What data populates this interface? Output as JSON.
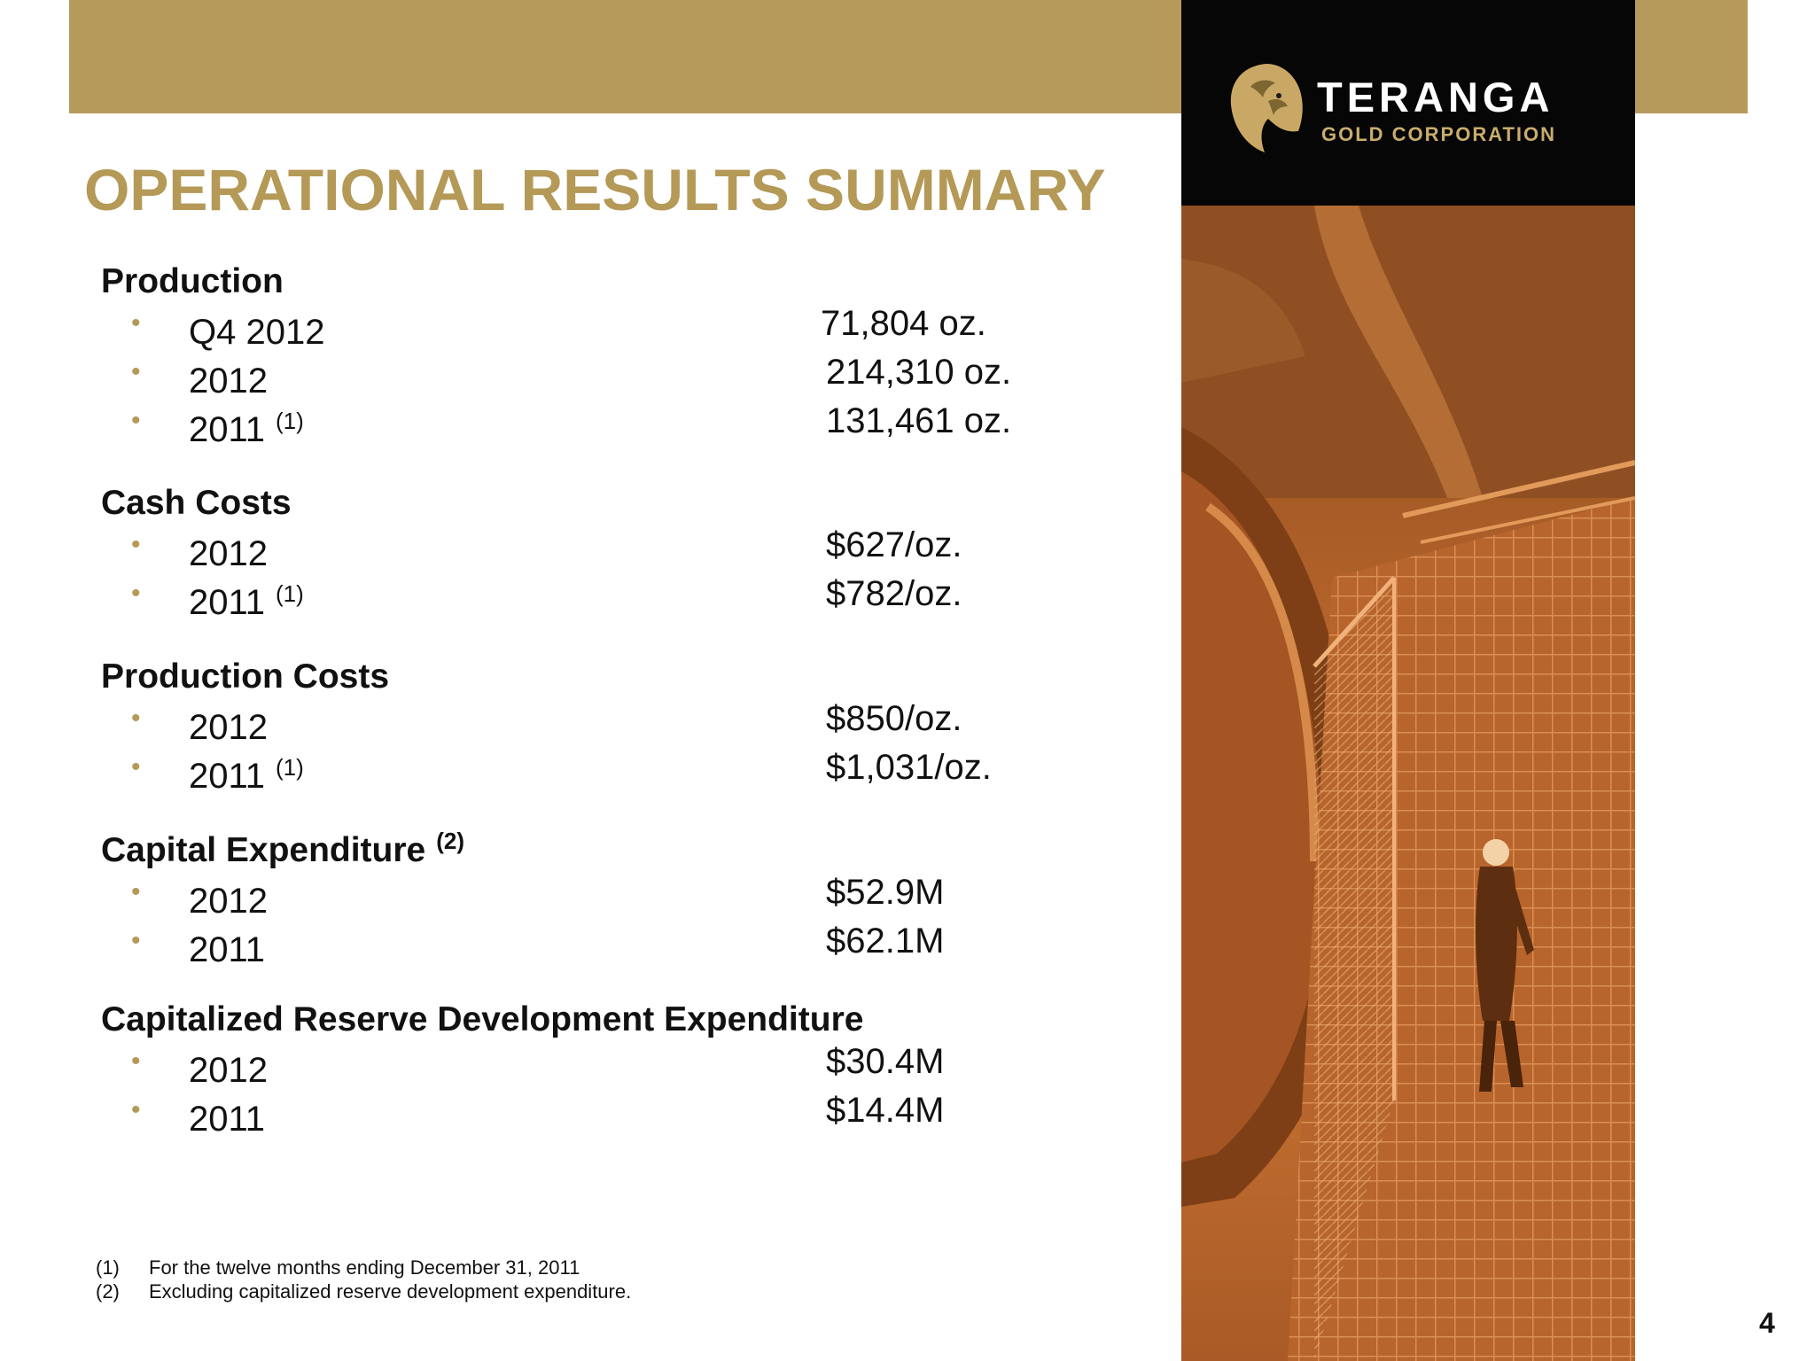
{
  "brand": {
    "name": "TERANGA",
    "subtitle": "GOLD CORPORATION"
  },
  "title": "OPERATIONAL RESULTS SUMMARY",
  "sections": [
    {
      "heading": "Production",
      "heading_note": "",
      "rows": [
        {
          "label": "Q4 2012",
          "note": "",
          "value": "71,804 oz."
        },
        {
          "label": "2012",
          "note": "",
          "value": "214,310 oz."
        },
        {
          "label": "2011",
          "note": "(1)",
          "value": "131,461 oz."
        }
      ]
    },
    {
      "heading": "Cash Costs",
      "heading_note": "",
      "rows": [
        {
          "label": "2012",
          "note": "",
          "value": "$627/oz."
        },
        {
          "label": "2011",
          "note": "(1)",
          "value": "$782/oz."
        }
      ]
    },
    {
      "heading": "Production Costs",
      "heading_note": "",
      "rows": [
        {
          "label": "2012",
          "note": "",
          "value": "$850/oz."
        },
        {
          "label": "2011",
          "note": "(1)",
          "value": "$1,031/oz."
        }
      ]
    },
    {
      "heading": "Capital Expenditure",
      "heading_note": "(2)",
      "rows": [
        {
          "label": "2012",
          "note": "",
          "value": "$52.9M"
        },
        {
          "label": "2011",
          "note": "",
          "value": "$62.1M"
        }
      ]
    },
    {
      "heading": "Capitalized Reserve Development Expenditure",
      "heading_note": "",
      "rows": [
        {
          "label": "2012",
          "note": "",
          "value": "$30.4M"
        },
        {
          "label": "2011",
          "note": "",
          "value": "$14.4M"
        }
      ]
    }
  ],
  "bullet_glyph": "•",
  "footnotes": [
    {
      "num": "(1)",
      "text": "For the twelve months ending December 31, 2011"
    },
    {
      "num": "(2)",
      "text": "Excluding capitalized reserve development expenditure."
    }
  ],
  "page_number": "4",
  "colors": {
    "band": "#b59a5c",
    "title": "#b49957",
    "logo_bg": "#060606",
    "photo_tint": "#b2622a"
  }
}
